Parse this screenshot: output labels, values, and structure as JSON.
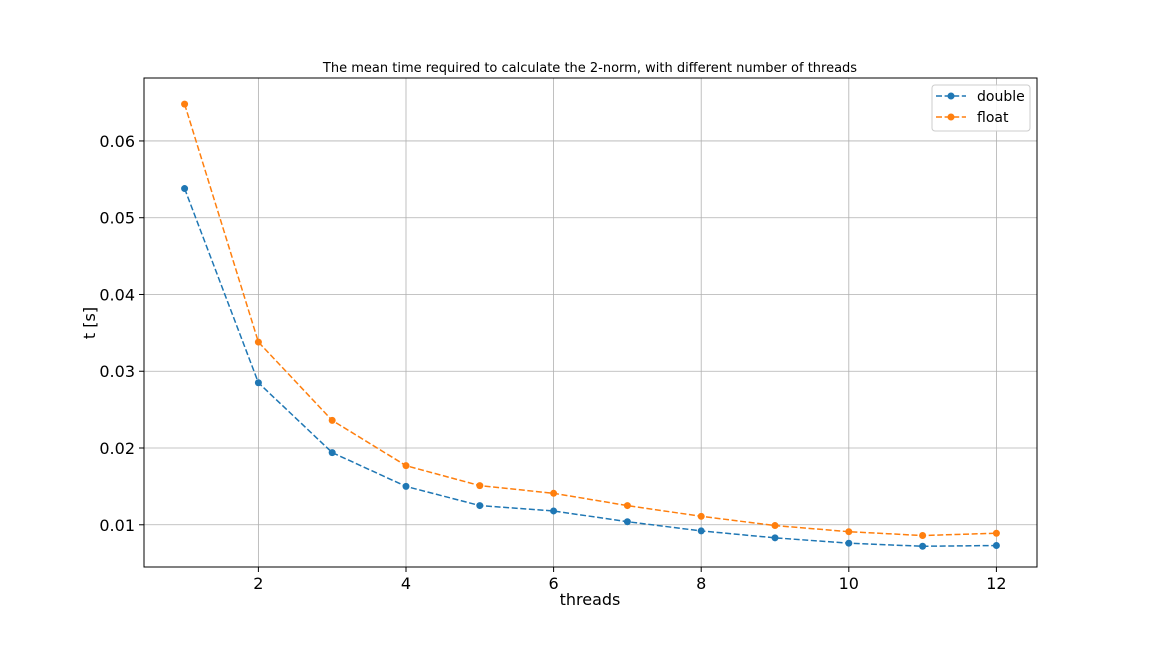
{
  "chart_data": {
    "type": "line",
    "title": "The mean time required to calculate the 2-norm, with different number of threads",
    "xlabel": "threads",
    "ylabel": "t [s]",
    "x": [
      1,
      2,
      3,
      4,
      5,
      6,
      7,
      8,
      9,
      10,
      11,
      12
    ],
    "xlim": [
      0.45,
      12.55
    ],
    "ylim": [
      0.0045,
      0.0682
    ],
    "xticks": [
      2,
      4,
      6,
      8,
      10,
      12
    ],
    "yticks": [
      0.01,
      0.02,
      0.03,
      0.04,
      0.05,
      0.06
    ],
    "xtick_labels": [
      "2",
      "4",
      "6",
      "8",
      "10",
      "12"
    ],
    "ytick_labels": [
      "0.01",
      "0.02",
      "0.03",
      "0.04",
      "0.05",
      "0.06"
    ],
    "grid": true,
    "legend_position": "top-right",
    "series": [
      {
        "name": "double",
        "color": "#1f77b4",
        "linestyle": "dashed",
        "marker": "circle",
        "values": [
          0.0538,
          0.0285,
          0.0194,
          0.015,
          0.0125,
          0.0118,
          0.0104,
          0.0092,
          0.0083,
          0.0076,
          0.0072,
          0.0073
        ]
      },
      {
        "name": "float",
        "color": "#ff7f0e",
        "linestyle": "dashed",
        "marker": "circle",
        "values": [
          0.0648,
          0.0338,
          0.0236,
          0.0177,
          0.0151,
          0.0141,
          0.0125,
          0.0111,
          0.0099,
          0.0091,
          0.0086,
          0.0089
        ]
      }
    ]
  }
}
